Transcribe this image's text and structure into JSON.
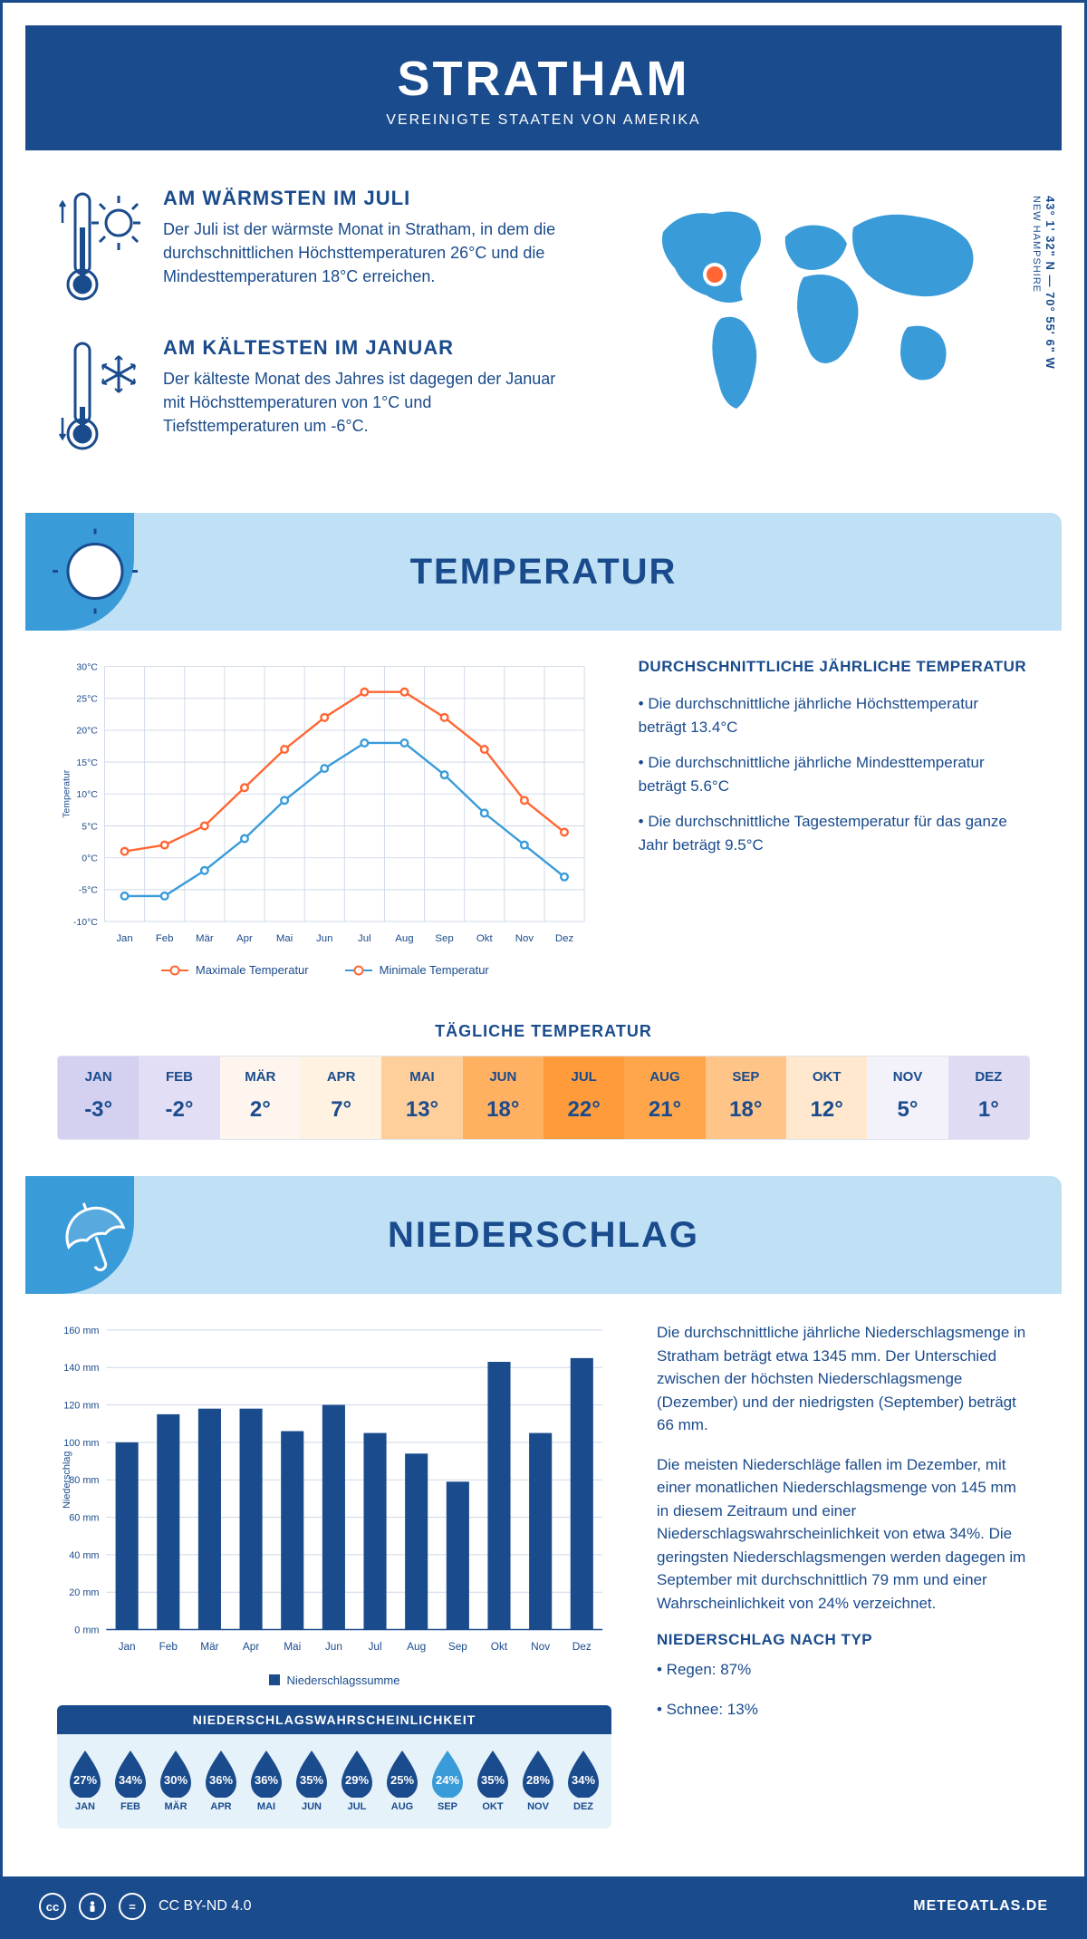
{
  "header": {
    "title": "STRATHAM",
    "subtitle": "VEREINIGTE STAATEN VON AMERIKA"
  },
  "coords": {
    "lat": "43° 1' 32\" N",
    "lon": "70° 55' 6\" W",
    "state": "NEW HAMPSHIRE"
  },
  "intro": {
    "warm": {
      "heading": "AM WÄRMSTEN IM JULI",
      "text": "Der Juli ist der wärmste Monat in Stratham, in dem die durchschnittlichen Höchsttemperaturen 26°C und die Mindesttemperaturen 18°C erreichen."
    },
    "cold": {
      "heading": "AM KÄLTESTEN IM JANUAR",
      "text": "Der kälteste Monat des Jahres ist dagegen der Januar mit Höchsttemperaturen von 1°C und Tiefsttemperaturen um -6°C."
    }
  },
  "colors": {
    "primary": "#1a4b8c",
    "accent": "#3a9bd9",
    "banner": "#bfe0f5",
    "max_line": "#ff6633",
    "min_line": "#3a9bd9",
    "grid": "#cfd9e8"
  },
  "temp_section": {
    "title": "TEMPERATUR"
  },
  "temp_chart": {
    "type": "line",
    "ylabel": "Temperatur",
    "months": [
      "Jan",
      "Feb",
      "Mär",
      "Apr",
      "Mai",
      "Jun",
      "Jul",
      "Aug",
      "Sep",
      "Okt",
      "Nov",
      "Dez"
    ],
    "max": [
      1,
      2,
      5,
      11,
      17,
      22,
      26,
      26,
      22,
      17,
      9,
      4
    ],
    "min": [
      -6,
      -6,
      -2,
      3,
      9,
      14,
      18,
      18,
      13,
      7,
      2,
      -3
    ],
    "ylim": [
      -10,
      30
    ],
    "ytick_step": 5,
    "y_suffix": "°C",
    "legend_max": "Maximale Temperatur",
    "legend_min": "Minimale Temperatur"
  },
  "temp_text": {
    "heading": "DURCHSCHNITTLICHE JÄHRLICHE TEMPERATUR",
    "b1": "• Die durchschnittliche jährliche Höchsttemperatur beträgt 13.4°C",
    "b2": "• Die durchschnittliche jährliche Mindesttemperatur beträgt 5.6°C",
    "b3": "• Die durchschnittliche Tagestemperatur für das ganze Jahr beträgt 9.5°C"
  },
  "daily": {
    "title": "TÄGLICHE TEMPERATUR",
    "months": [
      "JAN",
      "FEB",
      "MÄR",
      "APR",
      "MAI",
      "JUN",
      "JUL",
      "AUG",
      "SEP",
      "OKT",
      "NOV",
      "DEZ"
    ],
    "temps": [
      "-3°",
      "-2°",
      "2°",
      "7°",
      "13°",
      "18°",
      "22°",
      "21°",
      "18°",
      "12°",
      "5°",
      "1°"
    ],
    "cell_colors": [
      "#d4d0f0",
      "#e2def5",
      "#fdf5ee",
      "#fff2e0",
      "#ffcf9b",
      "#ffb061",
      "#ff9b3a",
      "#ffa64a",
      "#ffc487",
      "#ffe8ce",
      "#f3f1fa",
      "#dedbf3"
    ]
  },
  "precip_section": {
    "title": "NIEDERSCHLAG"
  },
  "precip_chart": {
    "type": "bar",
    "ylabel": "Niederschlag",
    "months": [
      "Jan",
      "Feb",
      "Mär",
      "Apr",
      "Mai",
      "Jun",
      "Jul",
      "Aug",
      "Sep",
      "Okt",
      "Nov",
      "Dez"
    ],
    "values": [
      100,
      115,
      118,
      118,
      106,
      120,
      105,
      94,
      79,
      143,
      105,
      145
    ],
    "ylim": [
      0,
      160
    ],
    "ytick_step": 20,
    "y_suffix": " mm",
    "bar_color": "#1a4b8c",
    "legend": "Niederschlagssumme"
  },
  "precip_text": {
    "p1": "Die durchschnittliche jährliche Niederschlagsmenge in Stratham beträgt etwa 1345 mm. Der Unterschied zwischen der höchsten Niederschlagsmenge (Dezember) und der niedrigsten (September) beträgt 66 mm.",
    "p2": "Die meisten Niederschläge fallen im Dezember, mit einer monatlichen Niederschlagsmenge von 145 mm in diesem Zeitraum und einer Niederschlagswahrscheinlichkeit von etwa 34%. Die geringsten Niederschlagsmengen werden dagegen im September mit durchschnittlich 79 mm und einer Wahrscheinlichkeit von 24% verzeichnet.",
    "type_heading": "NIEDERSCHLAG NACH TYP",
    "type_rain": "• Regen: 87%",
    "type_snow": "• Schnee: 13%"
  },
  "prob": {
    "title": "NIEDERSCHLAGSWAHRSCHEINLICHKEIT",
    "months": [
      "JAN",
      "FEB",
      "MÄR",
      "APR",
      "MAI",
      "JUN",
      "JUL",
      "AUG",
      "SEP",
      "OKT",
      "NOV",
      "DEZ"
    ],
    "values": [
      "27%",
      "34%",
      "30%",
      "36%",
      "36%",
      "35%",
      "29%",
      "25%",
      "24%",
      "35%",
      "28%",
      "34%"
    ],
    "drop_colors": [
      "#1a4b8c",
      "#1a4b8c",
      "#1a4b8c",
      "#1a4b8c",
      "#1a4b8c",
      "#1a4b8c",
      "#1a4b8c",
      "#1a4b8c",
      "#3a9bd9",
      "#1a4b8c",
      "#1a4b8c",
      "#1a4b8c"
    ]
  },
  "footer": {
    "license": "CC BY-ND 4.0",
    "site": "METEOATLAS.DE"
  }
}
